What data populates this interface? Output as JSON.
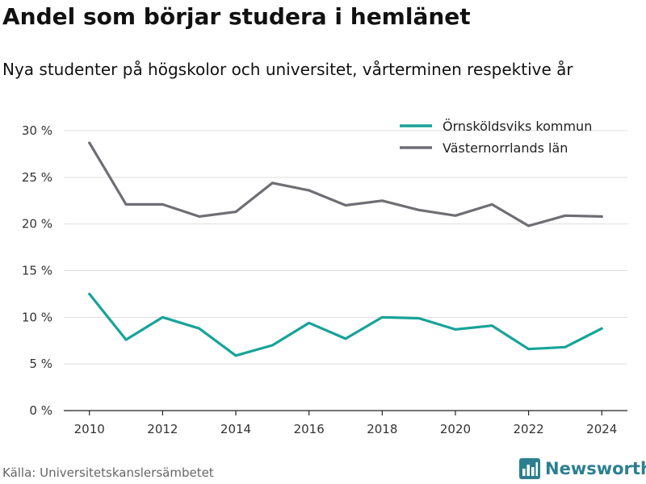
{
  "title": "Andel som börjar studera i hemlänet",
  "subtitle": "Nya studenter på högskolor och universitet, vårterminen respektive år",
  "source": "Källa: Universitetskanslersämbetet",
  "brand": {
    "name": "Newsworthy",
    "icon": "bar-chart-logo-icon",
    "color": "#2b7f8f"
  },
  "chart_data": {
    "type": "line",
    "x": [
      2010,
      2011,
      2012,
      2013,
      2014,
      2015,
      2016,
      2017,
      2018,
      2019,
      2020,
      2021,
      2022,
      2023,
      2024
    ],
    "x_ticks": [
      2010,
      2012,
      2014,
      2016,
      2018,
      2020,
      2022,
      2024
    ],
    "x_tick_labels": [
      "2010",
      "2012",
      "2014",
      "2016",
      "2018",
      "2020",
      "2022",
      "2024"
    ],
    "xlim": [
      2009.3,
      2024.7
    ],
    "ylim": [
      0,
      30
    ],
    "y_ticks": [
      0,
      5,
      10,
      15,
      20,
      25,
      30
    ],
    "y_tick_labels": [
      "0 %",
      "5 %",
      "10 %",
      "15 %",
      "20 %",
      "25 %",
      "30 %"
    ],
    "grid": true,
    "legend_position": "top-right",
    "series": [
      {
        "name": "Örnsköldsviks kommun",
        "color": "#17a398",
        "values": [
          12.5,
          7.6,
          10.0,
          8.8,
          5.9,
          7.0,
          9.4,
          7.7,
          10.0,
          9.9,
          8.7,
          9.1,
          6.6,
          6.8,
          8.8
        ]
      },
      {
        "name": "Västernorrlands län",
        "color": "#6e6e74",
        "values": [
          28.7,
          22.1,
          22.1,
          20.8,
          21.3,
          24.4,
          23.6,
          22.0,
          22.5,
          21.5,
          20.9,
          22.1,
          19.8,
          20.9,
          20.8
        ]
      }
    ]
  }
}
